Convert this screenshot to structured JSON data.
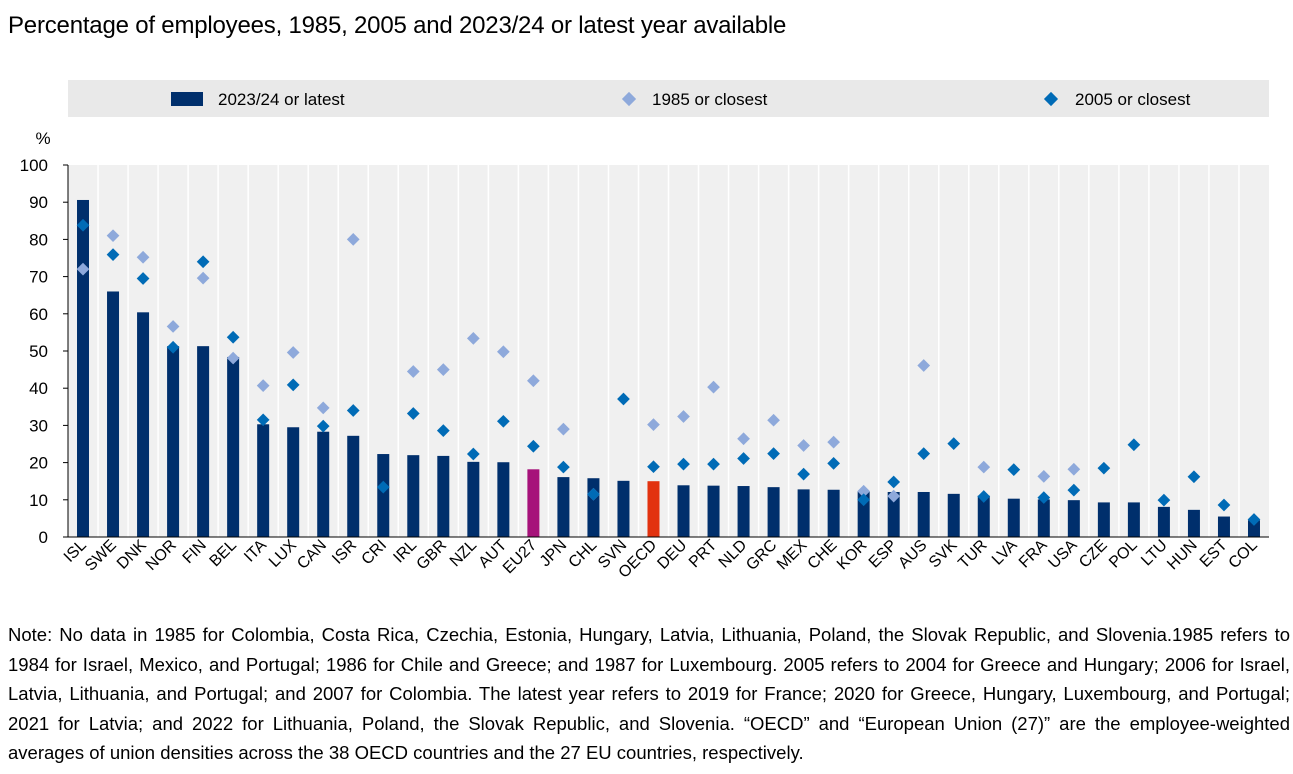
{
  "title": "Percentage of employees, 1985, 2005 and 2023/24 or latest year available",
  "note": "Note: No data in 1985 for Colombia, Costa Rica, Czechia, Estonia, Hungary, Latvia, Lithuania, Poland, the Slovak Republic, and Slovenia.1985 refers to 1984 for Israel, Mexico, and Portugal; 1986 for Chile and Greece; and 1987 for Luxembourg. 2005 refers to 2004 for Greece and Hungary; 2006 for Israel, Latvia, Lithuania, and Portugal; and 2007 for Colombia. The latest year refers to 2019 for France; 2020 for Greece, Hungary, Luxembourg, and Portugal; 2021 for Latvia; and 2022 for Lithuania, Poland, the Slovak Republic, and Slovenia. “OECD” and “European Union (27)” are the employee-weighted averages of union densities across the 38 OECD countries and the 27 EU countries, respectively.",
  "colors": {
    "bar": "#002F6C",
    "bar_eu27": "#A6127A",
    "bar_oecd": "#E2320F",
    "diamond_1985": "#8EA9DB",
    "diamond_2005": "#006BB6",
    "legend_bg": "#E9E9E9",
    "plot_bg": "#F0F0F0"
  },
  "chart_data": {
    "type": "bar",
    "title": "Percentage of employees, 1985, 2005 and 2023/24 or latest year available",
    "ylabel": "%",
    "xlabel": "",
    "ylim": [
      0,
      100
    ],
    "yticks": [
      "0",
      "10",
      "20",
      "30",
      "40",
      "50",
      "60",
      "70",
      "80",
      "90",
      "100"
    ],
    "legend_position": "top",
    "categories": [
      "ISL",
      "SWE",
      "DNK",
      "NOR",
      "FIN",
      "BEL",
      "ITA",
      "LUX",
      "CAN",
      "ISR",
      "CRI",
      "IRL",
      "GBR",
      "NZL",
      "AUT",
      "EU27",
      "JPN",
      "CHL",
      "SVN",
      "OECD",
      "DEU",
      "PRT",
      "NLD",
      "GRC",
      "MEX",
      "CHE",
      "KOR",
      "ESP",
      "AUS",
      "SVK",
      "TUR",
      "LVA",
      "FRA",
      "USA",
      "CZE",
      "POL",
      "LTU",
      "HUN",
      "EST",
      "COL"
    ],
    "highlight": {
      "EU27": "bar_eu27",
      "OECD": "bar_oecd"
    },
    "series": [
      {
        "name": "2023/24 or latest",
        "kind": "bar",
        "values": [
          90.6,
          66,
          60.4,
          51.3,
          51.3,
          48.4,
          30.3,
          29.5,
          28.3,
          27.2,
          22.3,
          22,
          21.8,
          20.2,
          20.1,
          18.2,
          16.1,
          15.8,
          15.1,
          15,
          13.9,
          13.8,
          13.7,
          13.4,
          12.8,
          12.7,
          12.3,
          12.1,
          12.1,
          11.6,
          11.1,
          10.3,
          10.1,
          9.9,
          9.3,
          9.3,
          8.1,
          7.3,
          5.5,
          4.5
        ]
      },
      {
        "name": "1985 or closest",
        "kind": "diamond",
        "values": [
          72,
          81,
          75.2,
          56.6,
          69.6,
          48.1,
          40.7,
          49.6,
          34.7,
          80,
          null,
          44.5,
          45,
          53.4,
          49.8,
          42,
          29,
          11.5,
          null,
          30.2,
          32.4,
          40.3,
          26.4,
          31.4,
          24.6,
          25.5,
          12.3,
          11,
          46.1,
          null,
          18.8,
          null,
          16.3,
          18.2,
          null,
          null,
          null,
          null,
          null,
          null
        ]
      },
      {
        "name": "2005 or closest",
        "kind": "diamond",
        "values": [
          83.8,
          75.9,
          69.5,
          51,
          74,
          53.7,
          31.5,
          40.9,
          29.8,
          34,
          13.4,
          33.2,
          28.6,
          22.3,
          31.1,
          24.4,
          18.8,
          11.5,
          37.1,
          18.9,
          19.6,
          19.6,
          21.1,
          22.4,
          16.9,
          19.8,
          10,
          14.8,
          22.4,
          25.1,
          10.9,
          18.1,
          10.6,
          12.6,
          18.5,
          24.8,
          9.9,
          16.2,
          8.6,
          4.7
        ]
      }
    ]
  }
}
